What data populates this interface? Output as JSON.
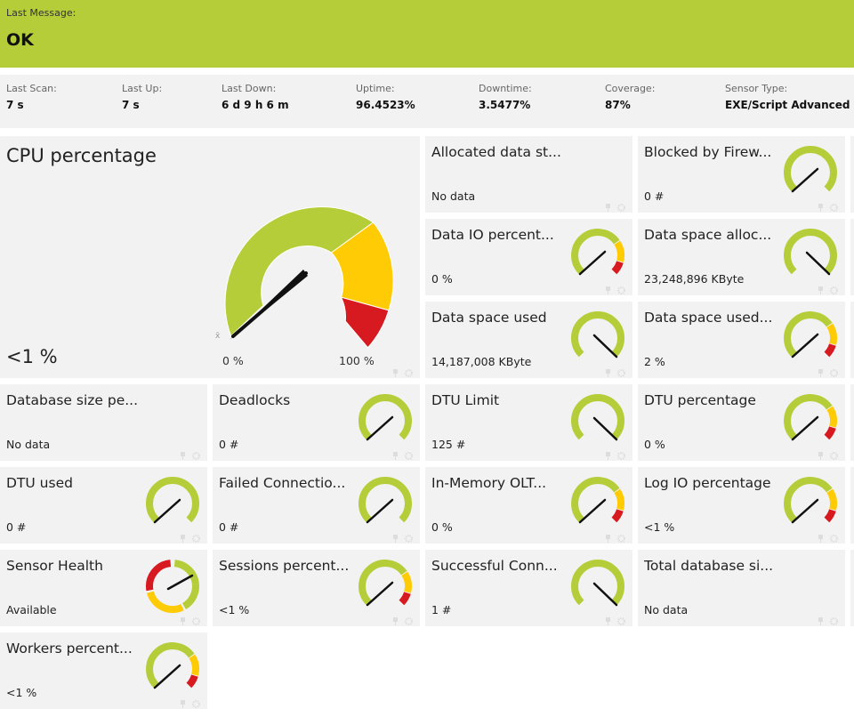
{
  "banner": {
    "label": "Last Message:",
    "message": "OK",
    "color": "#b5cd38"
  },
  "stats": [
    {
      "key": "Last Scan:",
      "value": "7 s"
    },
    {
      "key": "Last Up:",
      "value": "7 s"
    },
    {
      "key": "Last Down:",
      "value": "6 d 9 h 6 m"
    },
    {
      "key": "Uptime:",
      "value": "96.4523%"
    },
    {
      "key": "Downtime:",
      "value": "3.5477%"
    },
    {
      "key": "Coverage:",
      "value": "87%"
    },
    {
      "key": "Sensor Type:",
      "value": "EXE/Script Advanced"
    }
  ],
  "cpu": {
    "title": "CPU percentage",
    "value": "<1 %",
    "min_label": "0 %",
    "max_label": "100 %",
    "avg_marker": "x̄"
  },
  "channels": [
    {
      "title": "Allocated data st...",
      "value": "No data",
      "gauge": "none"
    },
    {
      "title": "Blocked by Firew...",
      "value": "0 #",
      "gauge": "green"
    },
    {
      "title": "Data IO percent...",
      "value": "0 %",
      "gauge": "pct"
    },
    {
      "title": "Data space alloc...",
      "value": "23,248,896 KByte",
      "gauge": "green-high"
    },
    {
      "title": "Data space used",
      "value": "14,187,008 KByte",
      "gauge": "green-high"
    },
    {
      "title": "Data space used...",
      "value": "2 %",
      "gauge": "pct"
    },
    {
      "title": "Database size pe...",
      "value": "No data",
      "gauge": "none"
    },
    {
      "title": "Deadlocks",
      "value": "0 #",
      "gauge": "green"
    },
    {
      "title": "DTU Limit",
      "value": "125 #",
      "gauge": "green-high"
    },
    {
      "title": "DTU percentage",
      "value": "0 %",
      "gauge": "pct"
    },
    {
      "title": "DTU used",
      "value": "0 #",
      "gauge": "green"
    },
    {
      "title": "Failed Connectio...",
      "value": "0 #",
      "gauge": "green"
    },
    {
      "title": "In-Memory OLT...",
      "value": "0 %",
      "gauge": "pct"
    },
    {
      "title": "Log IO percentage",
      "value": "<1 %",
      "gauge": "pct"
    },
    {
      "title": "Sensor Health",
      "value": "Available",
      "gauge": "health"
    },
    {
      "title": "Sessions percent...",
      "value": "<1 %",
      "gauge": "pct"
    },
    {
      "title": "Successful Conn...",
      "value": "1 #",
      "gauge": "green-high"
    },
    {
      "title": "Total database si...",
      "value": "No data",
      "gauge": "none"
    },
    {
      "title": "Workers percent...",
      "value": "<1 %",
      "gauge": "pct"
    }
  ],
  "colors": {
    "green": "#b5cd38",
    "yellow": "#ffcb05",
    "red": "#d71920",
    "tile_bg": "#f2f2f2",
    "needle": "#111111"
  },
  "tile_icons": [
    "pin-icon",
    "gear-icon"
  ]
}
